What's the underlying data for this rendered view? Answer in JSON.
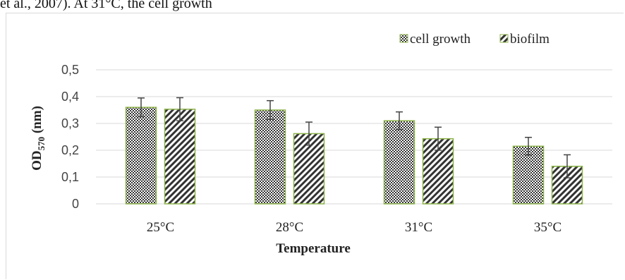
{
  "page": {
    "top_text": "et al., 2007). At 31°C, the cell growth"
  },
  "chart_data": {
    "type": "bar",
    "categories": [
      "25°C",
      "28°C",
      "31°C",
      "35°C"
    ],
    "series": [
      {
        "name": "cell growth",
        "values": [
          0.36,
          0.35,
          0.31,
          0.215
        ],
        "errors": [
          0.035,
          0.035,
          0.033,
          0.033
        ],
        "pattern": "checker"
      },
      {
        "name": "biofilm",
        "values": [
          0.353,
          0.262,
          0.243,
          0.14
        ],
        "errors": [
          0.043,
          0.043,
          0.043,
          0.043
        ],
        "pattern": "diagonal"
      }
    ],
    "xlabel": "Temperature",
    "ylabel_main": "OD",
    "ylabel_sub": "570",
    "ylabel_unit": " (nm)",
    "ylim": [
      0,
      0.5
    ],
    "yticks": [
      "0",
      "0,1",
      "0,2",
      "0,3",
      "0,4",
      "0,5"
    ],
    "grid": true,
    "legend": "top-right",
    "colors": {
      "bar_border": "#8cb34a",
      "grid": "#d9d9d9",
      "error_bar": "#444444",
      "pattern_fill": "#3a3a3a"
    }
  }
}
